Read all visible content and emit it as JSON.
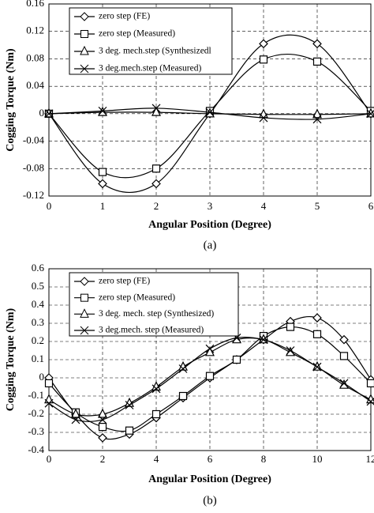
{
  "chart_data": [
    {
      "type": "line",
      "x_label": "Angular Position (Degree)",
      "y_label": "Cogging Torque (Nm)",
      "caption": "(a)",
      "x": [
        0,
        1,
        2,
        3,
        4,
        5,
        6
      ],
      "xlim": [
        0,
        6
      ],
      "xticks": [
        0,
        1,
        2,
        3,
        4,
        5,
        6
      ],
      "ylim": [
        -0.12,
        0.16
      ],
      "yticks": [
        -0.12,
        -0.08,
        -0.04,
        0,
        0.04,
        0.08,
        0.12,
        0.16
      ],
      "grid": true,
      "legend": "upper left",
      "series": [
        {
          "name": "zero step (FE)",
          "color": "#000000",
          "marker": "diamond",
          "values": [
            0,
            -0.102,
            -0.102,
            0,
            0.102,
            0.102,
            0
          ]
        },
        {
          "name": "zero step (Measured)",
          "color": "#000000",
          "marker": "square",
          "values": [
            0,
            -0.085,
            -0.08,
            0.004,
            0.079,
            0.076,
            0.004
          ]
        },
        {
          "name": "3 deg. mech.step (Synthesizedl",
          "color": "#000000",
          "marker": "triangle",
          "values": [
            0,
            0.002,
            0.002,
            0,
            -0.001,
            -0.001,
            0
          ]
        },
        {
          "name": "3 deg.mech.step (Measured)",
          "color": "#000000",
          "marker": "x",
          "values": [
            0,
            0.004,
            0.008,
            0.002,
            -0.006,
            -0.008,
            0
          ]
        }
      ]
    },
    {
      "type": "line",
      "x_label": "Angular Position (Degree)",
      "y_label": "Cogging Torque (Nm)",
      "caption": "(b)",
      "x": [
        0,
        1,
        2,
        3,
        4,
        5,
        6,
        7,
        8,
        9,
        10,
        11,
        12
      ],
      "xlim": [
        0,
        12
      ],
      "xticks": [
        0,
        2,
        4,
        6,
        8,
        10,
        12
      ],
      "ylim": [
        -0.4,
        0.6
      ],
      "yticks": [
        -0.4,
        -0.3,
        -0.2,
        -0.1,
        0,
        0.1,
        0.2,
        0.3,
        0.4,
        0.5,
        0.6
      ],
      "grid": true,
      "legend": "upper left",
      "series": [
        {
          "name": "zero step (FE)",
          "color": "#000000",
          "marker": "diamond",
          "values": [
            0,
            -0.2,
            -0.33,
            -0.31,
            -0.22,
            -0.11,
            0,
            0.1,
            0.21,
            0.31,
            0.33,
            0.21,
            -0.01
          ]
        },
        {
          "name": "zero step (Measured)",
          "color": "#000000",
          "marker": "square",
          "values": [
            -0.03,
            -0.19,
            -0.27,
            -0.29,
            -0.2,
            -0.1,
            0.01,
            0.1,
            0.23,
            0.28,
            0.24,
            0.12,
            -0.03
          ]
        },
        {
          "name": "3 deg. mech. step (Synthesized)",
          "color": "#000000",
          "marker": "triangle",
          "values": [
            -0.12,
            -0.2,
            -0.2,
            -0.14,
            -0.05,
            0.06,
            0.14,
            0.21,
            0.21,
            0.14,
            0.06,
            -0.04,
            -0.12
          ]
        },
        {
          "name": "3 deg.mech. step (Measured)",
          "color": "#000000",
          "marker": "x",
          "values": [
            -0.14,
            -0.23,
            -0.23,
            -0.15,
            -0.06,
            0.05,
            0.16,
            0.22,
            0.21,
            0.15,
            0.06,
            -0.03,
            -0.13
          ]
        }
      ]
    }
  ]
}
